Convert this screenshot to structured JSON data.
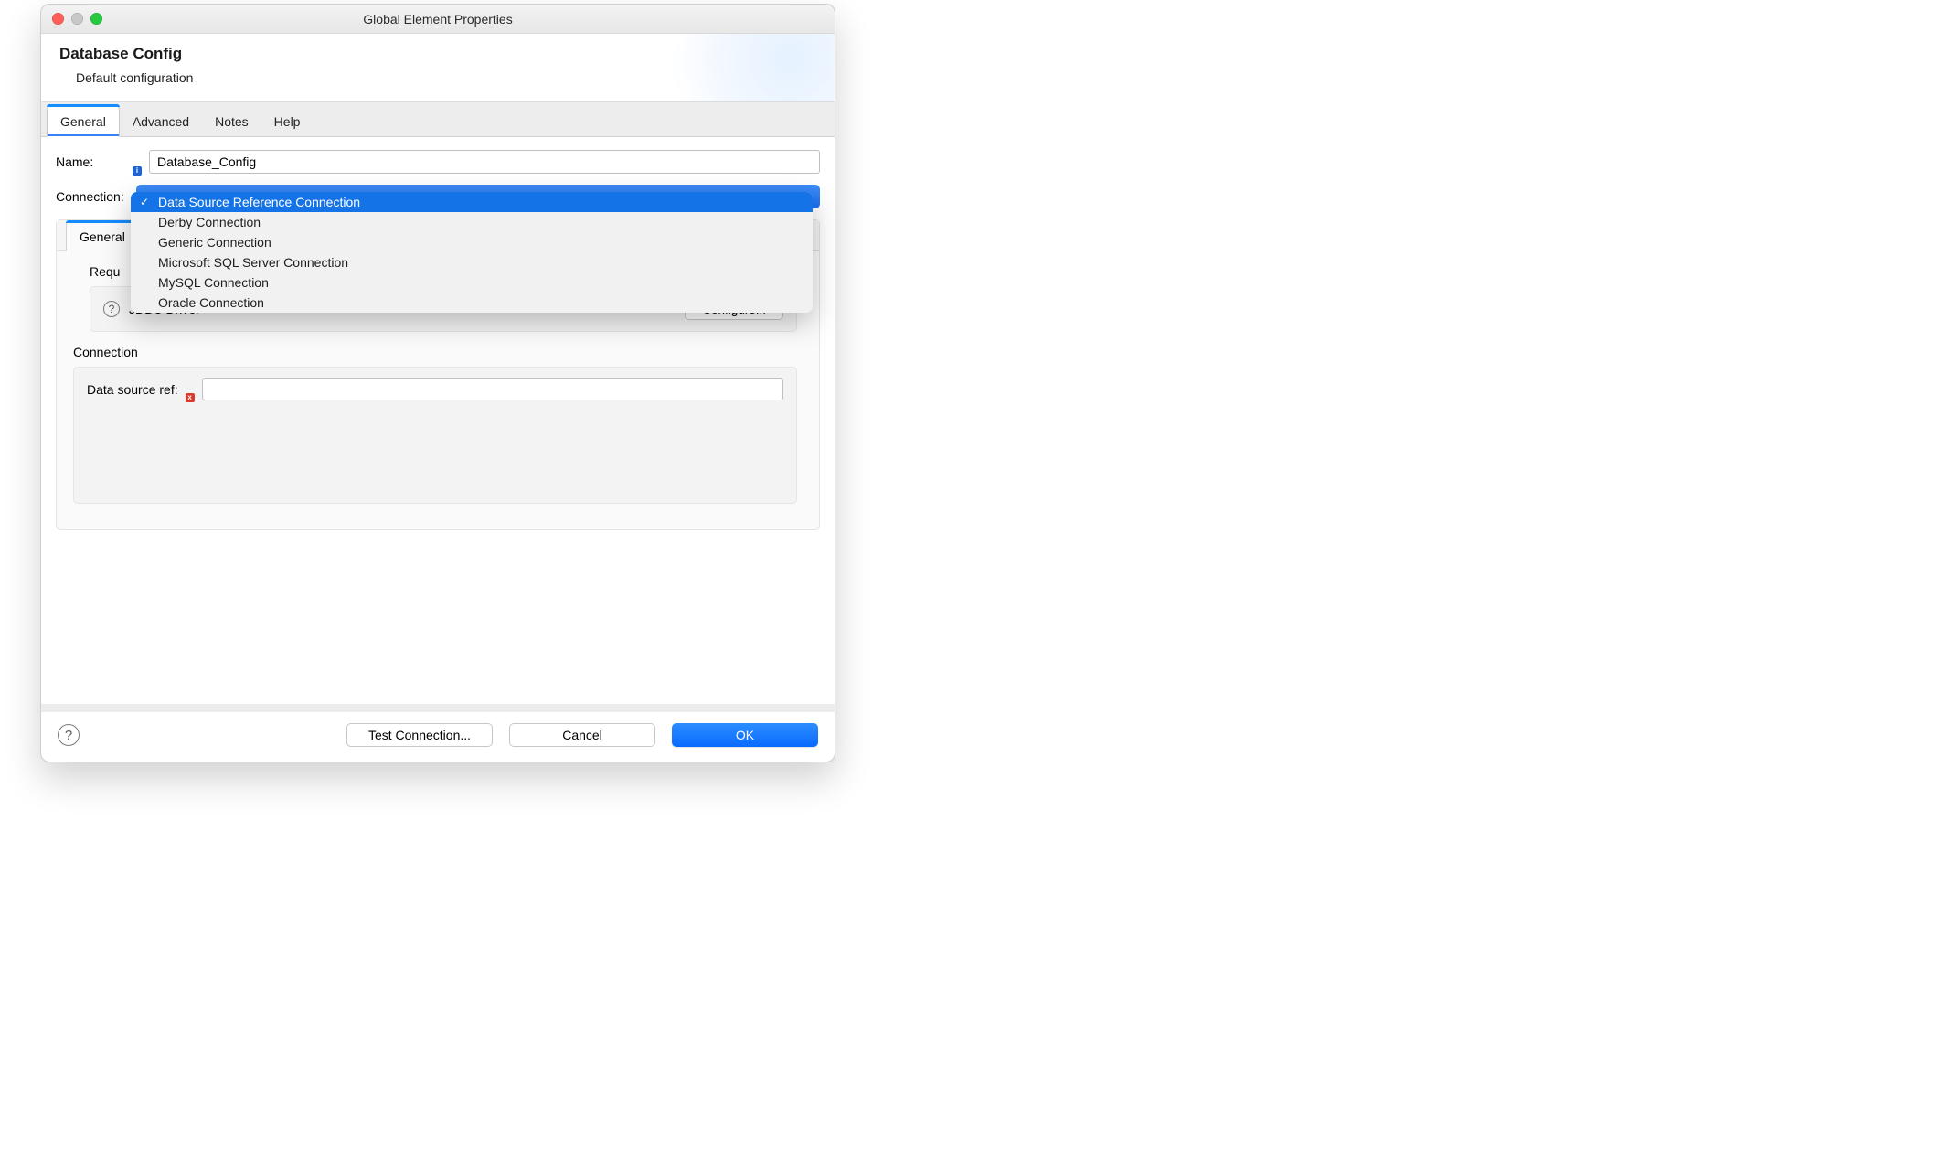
{
  "window": {
    "title": "Global Element Properties"
  },
  "header": {
    "title": "Database Config",
    "subtitle": "Default configuration"
  },
  "tabs": {
    "items": [
      "General",
      "Advanced",
      "Notes",
      "Help"
    ],
    "activeIndex": 0
  },
  "form": {
    "name_label": "Name:",
    "name_value": "Database_Config",
    "connection_label": "Connection:"
  },
  "connection_dropdown": {
    "selectedIndex": 0,
    "options": [
      "Data Source Reference Connection",
      "Derby Connection",
      "Generic Connection",
      "Microsoft SQL Server Connection",
      "MySQL Connection",
      "Oracle Connection"
    ],
    "background_color": "#f1f1f1",
    "selected_bg": "#1473e6",
    "selected_fg": "#ffffff"
  },
  "inner": {
    "tab_label": "General",
    "required_section": "Requ",
    "jdbc_label": "JDBC Driver",
    "configure_label": "Configure...",
    "connection_section": "Connection",
    "dsref_label": "Data source ref:",
    "dsref_value": ""
  },
  "footer": {
    "test_label": "Test Connection...",
    "cancel_label": "Cancel",
    "ok_label": "OK"
  },
  "colors": {
    "accent": "#148cff",
    "primary_button": "#0a6aff",
    "window_bg": "#ececec",
    "panel_border": "#e3e3e3"
  }
}
